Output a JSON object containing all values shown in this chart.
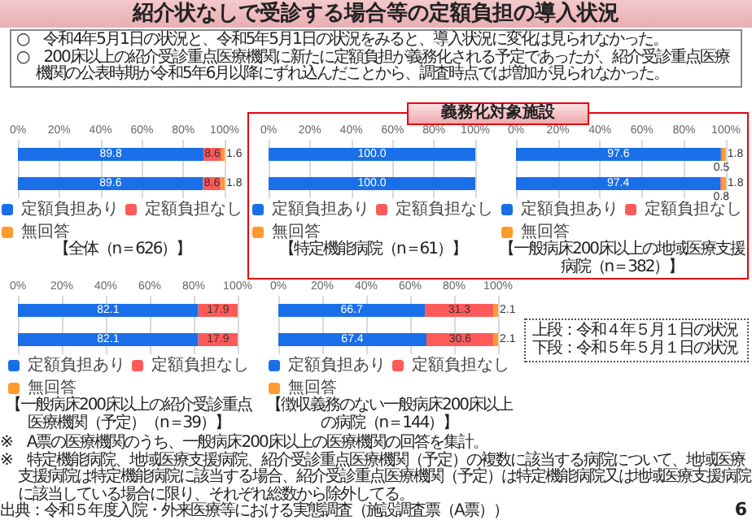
{
  "chart_data": [
    {
      "type": "other",
      "title": "紹介状なしで受診する場合等の定額負担の導入状況",
      "annotations": [
        "○　令和4年5月1日の状況と、令和5年5月1日の状況をみると、導入状況に変化は見られなかった。",
        "○　200床以上の紹介受診重点医療機関に新たに定額負担が義務化される予定であったが、紹介受診重点医療機関の公表時期が令和5年6月以降にずれ込んだことから、調査時点では増加が見られなかった。"
      ]
    },
    {
      "type": "bar",
      "orientation": "horizontal",
      "stacked": true,
      "title": "【全体（n＝626）】",
      "categories": [
        null,
        null
      ],
      "xlim": [
        0,
        100
      ],
      "xticks": [
        {
          "value": 0,
          "label": "0%"
        },
        {
          "value": 20,
          "label": "20%"
        },
        {
          "value": 40,
          "label": "40%"
        },
        {
          "value": 60,
          "label": "60%"
        },
        {
          "value": 80,
          "label": "80%"
        },
        {
          "value": 100,
          "label": "100%"
        }
      ],
      "grid": "x",
      "legend": "bottom",
      "series": [
        {
          "name": "定額負担あり",
          "color": "#1a6fe8",
          "values": [
            89.8,
            89.6
          ],
          "value_labels": [
            "89.8",
            "89.6"
          ]
        },
        {
          "name": "定額負担なし",
          "color": "#ff5a5a",
          "values": [
            8.6,
            8.6
          ],
          "value_labels": [
            "8.6",
            "8.6"
          ]
        },
        {
          "name": "無回答",
          "color": "#ff9a2e",
          "values": [
            1.6,
            1.8
          ],
          "value_labels": [
            "1.6",
            "1.8"
          ]
        }
      ]
    },
    {
      "type": "other",
      "title": "義務化対象施設"
    },
    {
      "type": "bar",
      "orientation": "horizontal",
      "stacked": true,
      "title": "【特定機能病院（n＝61）】",
      "categories": [
        null,
        null
      ],
      "xlim": [
        0,
        100
      ],
      "xticks": [
        {
          "value": 0,
          "label": "0%"
        },
        {
          "value": 20,
          "label": "20%"
        },
        {
          "value": 40,
          "label": "40%"
        },
        {
          "value": 60,
          "label": "60%"
        },
        {
          "value": 80,
          "label": "80%"
        },
        {
          "value": 100,
          "label": "100%"
        }
      ],
      "grid": "x",
      "legend": "bottom",
      "series": [
        {
          "name": "定額負担あり",
          "color": "#1a6fe8",
          "values": [
            100.0,
            100.0
          ],
          "value_labels": [
            "100.0",
            "100.0"
          ]
        },
        {
          "name": "定額負担なし",
          "color": "#ff5a5a",
          "values": [
            0,
            0
          ]
        },
        {
          "name": "無回答",
          "color": "#ff9a2e",
          "values": [
            0,
            0
          ]
        }
      ]
    },
    {
      "type": "bar",
      "orientation": "horizontal",
      "stacked": true,
      "title": "【一般病床200床以上の地域医療支援病院（n＝382）】",
      "categories": [
        null,
        null
      ],
      "xlim": [
        0,
        100
      ],
      "xticks": [
        {
          "value": 0,
          "label": "0%"
        },
        {
          "value": 20,
          "label": "20%"
        },
        {
          "value": 40,
          "label": "40%"
        },
        {
          "value": 60,
          "label": "60%"
        },
        {
          "value": 80,
          "label": "80%"
        },
        {
          "value": 100,
          "label": "100%"
        }
      ],
      "grid": "x",
      "legend": "bottom",
      "series": [
        {
          "name": "定額負担あり",
          "color": "#1a6fe8",
          "values": [
            97.6,
            97.4
          ],
          "value_labels": [
            "97.6",
            "97.4"
          ]
        },
        {
          "name": "定額負担なし",
          "color": "#ff5a5a",
          "values": [
            0.5,
            0.8
          ],
          "value_labels": [
            "0.5",
            "0.8"
          ]
        },
        {
          "name": "無回答",
          "color": "#ff9a2e",
          "values": [
            1.8,
            1.8
          ],
          "value_labels": [
            "1.8",
            "1.8"
          ]
        }
      ]
    },
    {
      "type": "bar",
      "orientation": "horizontal",
      "stacked": true,
      "title": "【一般病床200床以上の紹介受診重点医療機関（予定）（n＝39）】",
      "categories": [
        null,
        null
      ],
      "xlim": [
        0,
        100
      ],
      "xticks": [
        {
          "value": 0,
          "label": "0%"
        },
        {
          "value": 20,
          "label": "20%"
        },
        {
          "value": 40,
          "label": "40%"
        },
        {
          "value": 60,
          "label": "60%"
        },
        {
          "value": 80,
          "label": "80%"
        },
        {
          "value": 100,
          "label": "100%"
        }
      ],
      "grid": "x",
      "legend": "bottom",
      "series": [
        {
          "name": "定額負担あり",
          "color": "#1a6fe8",
          "values": [
            82.1,
            82.1
          ],
          "value_labels": [
            "82.1",
            "82.1"
          ]
        },
        {
          "name": "定額負担なし",
          "color": "#ff5a5a",
          "values": [
            17.9,
            17.9
          ],
          "value_labels": [
            "17.9",
            "17.9"
          ]
        },
        {
          "name": "無回答",
          "color": "#ff9a2e",
          "values": [
            0,
            0
          ]
        }
      ]
    },
    {
      "type": "bar",
      "orientation": "horizontal",
      "stacked": true,
      "title": "【徴収義務のない一般病床200床以上の病院（n＝144）】",
      "categories": [
        null,
        null
      ],
      "xlim": [
        0,
        100
      ],
      "xticks": [
        {
          "value": 0,
          "label": "0%"
        },
        {
          "value": 20,
          "label": "20%"
        },
        {
          "value": 40,
          "label": "40%"
        },
        {
          "value": 60,
          "label": "60%"
        },
        {
          "value": 80,
          "label": "80%"
        },
        {
          "value": 100,
          "label": "100%"
        }
      ],
      "grid": "x",
      "legend": "bottom",
      "series": [
        {
          "name": "定額負担あり",
          "color": "#1a6fe8",
          "values": [
            66.7,
            67.4
          ],
          "value_labels": [
            "66.7",
            "67.4"
          ]
        },
        {
          "name": "定額負担なし",
          "color": "#ff5a5a",
          "values": [
            31.3,
            30.6
          ],
          "value_labels": [
            "31.3",
            "30.6"
          ]
        },
        {
          "name": "無回答",
          "color": "#ff9a2e",
          "values": [
            2.1,
            2.1
          ],
          "value_labels": [
            "2.1",
            "2.1"
          ]
        }
      ]
    },
    {
      "type": "other",
      "annotations": [
        "上段：令和４年５月１日の状況",
        "下段：令和５年５月１日の状況"
      ]
    },
    {
      "type": "other",
      "annotations": [
        "※　A票の医療機関のうち、一般病床200床以上の医療機関の回答を集計。",
        "※　特定機能病院、地域医療支援病院、紹介受診重点医療機関（予定）の複数に該当する病院について、地域医療支援病院は特定機能病院に該当する場合、紹介受診重点医療機関（予定）は特定機能病院又は地域医療支援病院に該当している場合に限り、それぞれ総数から除外してる。",
        "出典：令和５年度入院・外来医療等における実態調査（施設調査票（A票））",
        "6"
      ]
    }
  ]
}
